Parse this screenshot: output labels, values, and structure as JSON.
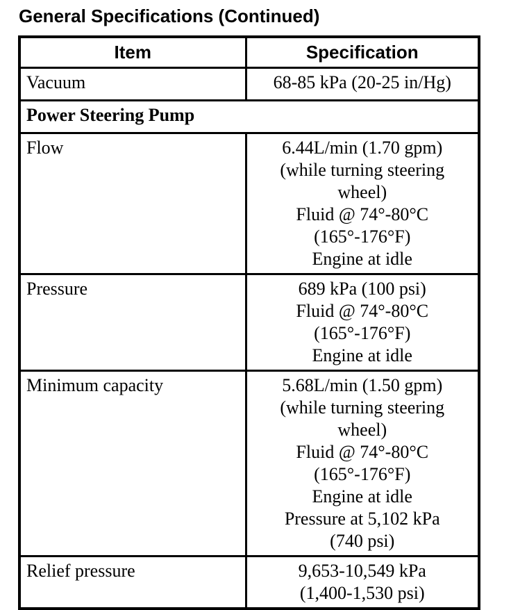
{
  "page": {
    "title": "General Specifications (Continued)"
  },
  "table": {
    "headers": [
      "Item",
      "Specification"
    ],
    "rows": [
      {
        "kind": "data",
        "item": "Vacuum",
        "spec": "68-85 kPa (20-25 in/Hg)"
      },
      {
        "kind": "section",
        "item": "Power Steering Pump",
        "spec": ""
      },
      {
        "kind": "data",
        "item": "Flow",
        "spec": "6.44L/min (1.70 gpm)\n(while turning steering\nwheel)\nFluid @ 74°-80°C\n(165°-176°F)\nEngine at idle"
      },
      {
        "kind": "data",
        "item": "Pressure",
        "spec": "689 kPa (100 psi)\nFluid @ 74°-80°C\n(165°-176°F)\nEngine at idle"
      },
      {
        "kind": "data",
        "item": "Minimum capacity",
        "spec": "5.68L/min (1.50 gpm)\n(while turning steering\nwheel)\nFluid @ 74°-80°C\n(165°-176°F)\nEngine at idle\nPressure at 5,102 kPa\n(740 psi)"
      },
      {
        "kind": "data",
        "item": "Relief pressure",
        "spec": "9,653-10,549 kPa\n(1,400-1,530 psi)"
      }
    ]
  }
}
